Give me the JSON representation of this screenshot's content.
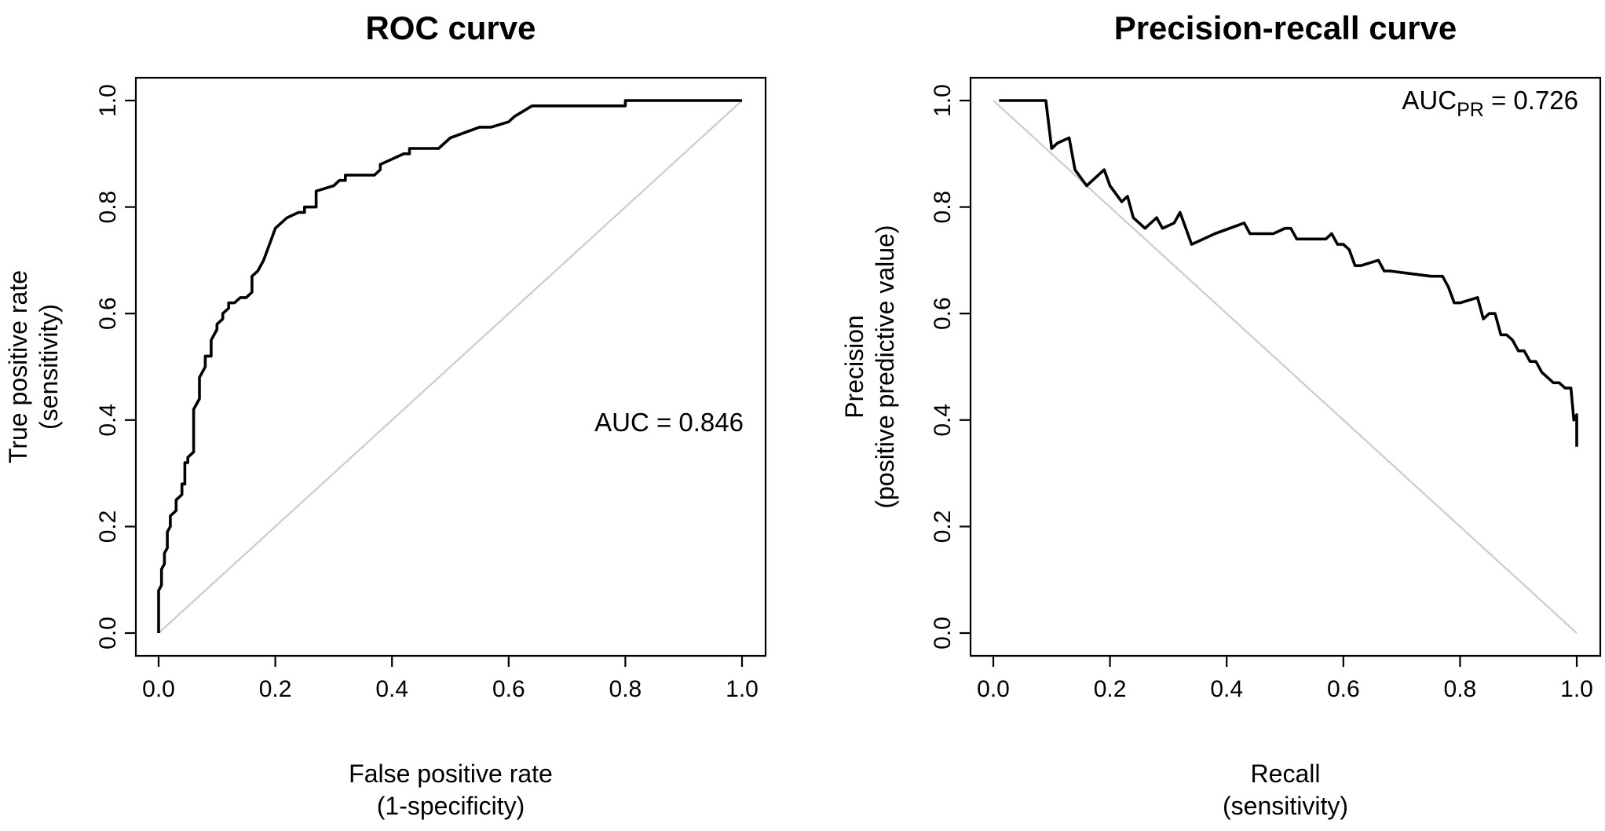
{
  "chart_data": [
    {
      "type": "line",
      "title": "ROC curve",
      "xlabel": [
        "False positive rate",
        "(1-specificity)"
      ],
      "ylabel": [
        "True positive rate",
        "(sensitivity)"
      ],
      "xlim": [
        0,
        1
      ],
      "ylim": [
        0,
        1
      ],
      "xticks": [
        "0.0",
        "0.2",
        "0.4",
        "0.6",
        "0.8",
        "1.0"
      ],
      "yticks": [
        "0.0",
        "0.2",
        "0.4",
        "0.6",
        "0.8",
        "1.0"
      ],
      "grid": false,
      "annotation": {
        "text": "AUC = 0.846"
      },
      "reference_line": {
        "x": [
          0,
          1
        ],
        "y": [
          0,
          1
        ],
        "color": "#cccccc"
      },
      "series": [
        {
          "color": "#000000",
          "x": [
            0,
            0,
            0.005,
            0.005,
            0.01,
            0.01,
            0.015,
            0.015,
            0.02,
            0.02,
            0.03,
            0.03,
            0.04,
            0.04,
            0.045,
            0.045,
            0.05,
            0.05,
            0.06,
            0.06,
            0.07,
            0.07,
            0.08,
            0.08,
            0.09,
            0.09,
            0.1,
            0.1,
            0.11,
            0.11,
            0.12,
            0.12,
            0.13,
            0.14,
            0.15,
            0.16,
            0.16,
            0.17,
            0.18,
            0.19,
            0.2,
            0.22,
            0.24,
            0.25,
            0.25,
            0.27,
            0.27,
            0.3,
            0.31,
            0.32,
            0.32,
            0.37,
            0.38,
            0.38,
            0.4,
            0.42,
            0.43,
            0.43,
            0.48,
            0.5,
            0.55,
            0.57,
            0.6,
            0.61,
            0.64,
            0.8,
            0.8,
            1.0
          ],
          "y": [
            0,
            0.08,
            0.09,
            0.12,
            0.13,
            0.15,
            0.16,
            0.19,
            0.2,
            0.22,
            0.23,
            0.25,
            0.26,
            0.28,
            0.28,
            0.32,
            0.32,
            0.33,
            0.34,
            0.42,
            0.44,
            0.48,
            0.5,
            0.52,
            0.52,
            0.55,
            0.57,
            0.58,
            0.59,
            0.6,
            0.61,
            0.62,
            0.62,
            0.63,
            0.63,
            0.64,
            0.67,
            0.68,
            0.7,
            0.73,
            0.76,
            0.78,
            0.79,
            0.79,
            0.8,
            0.8,
            0.83,
            0.84,
            0.85,
            0.85,
            0.86,
            0.86,
            0.87,
            0.88,
            0.89,
            0.9,
            0.9,
            0.91,
            0.91,
            0.93,
            0.95,
            0.95,
            0.96,
            0.97,
            0.99,
            0.99,
            1.0,
            1.0
          ]
        }
      ]
    },
    {
      "type": "line",
      "title": "Precision-recall curve",
      "xlabel": [
        "Recall",
        "(sensitivity)"
      ],
      "ylabel": [
        "Precision",
        "(positive predictive value)"
      ],
      "xlim": [
        0,
        1
      ],
      "ylim": [
        0,
        1
      ],
      "xticks": [
        "0.0",
        "0.2",
        "0.4",
        "0.6",
        "0.8",
        "1.0"
      ],
      "yticks": [
        "0.0",
        "0.2",
        "0.4",
        "0.6",
        "0.8",
        "1.0"
      ],
      "grid": false,
      "annotation": {
        "main": "AUC",
        "sub": "PR",
        "rest": " = 0.726"
      },
      "reference_line": {
        "x": [
          0,
          1
        ],
        "y": [
          1,
          0
        ],
        "color": "#cccccc"
      },
      "series": [
        {
          "color": "#000000",
          "x": [
            0.01,
            0.09,
            0.1,
            0.11,
            0.13,
            0.14,
            0.16,
            0.19,
            0.2,
            0.22,
            0.23,
            0.24,
            0.26,
            0.27,
            0.28,
            0.29,
            0.31,
            0.32,
            0.34,
            0.38,
            0.43,
            0.44,
            0.48,
            0.5,
            0.51,
            0.52,
            0.57,
            0.58,
            0.59,
            0.6,
            0.61,
            0.62,
            0.63,
            0.66,
            0.67,
            0.68,
            0.75,
            0.77,
            0.78,
            0.79,
            0.8,
            0.83,
            0.84,
            0.85,
            0.86,
            0.87,
            0.88,
            0.89,
            0.9,
            0.91,
            0.92,
            0.93,
            0.94,
            0.95,
            0.96,
            0.97,
            0.98,
            0.99,
            0.995,
            1.0,
            1.0
          ],
          "y": [
            1.0,
            1.0,
            0.91,
            0.92,
            0.93,
            0.87,
            0.84,
            0.87,
            0.84,
            0.81,
            0.82,
            0.78,
            0.76,
            0.77,
            0.78,
            0.76,
            0.77,
            0.79,
            0.73,
            0.75,
            0.77,
            0.75,
            0.75,
            0.76,
            0.76,
            0.74,
            0.74,
            0.75,
            0.73,
            0.73,
            0.72,
            0.69,
            0.69,
            0.7,
            0.68,
            0.68,
            0.67,
            0.67,
            0.65,
            0.62,
            0.62,
            0.63,
            0.59,
            0.6,
            0.6,
            0.56,
            0.56,
            0.55,
            0.53,
            0.53,
            0.51,
            0.51,
            0.49,
            0.48,
            0.47,
            0.47,
            0.46,
            0.46,
            0.4,
            0.41,
            0.35
          ]
        }
      ]
    }
  ]
}
